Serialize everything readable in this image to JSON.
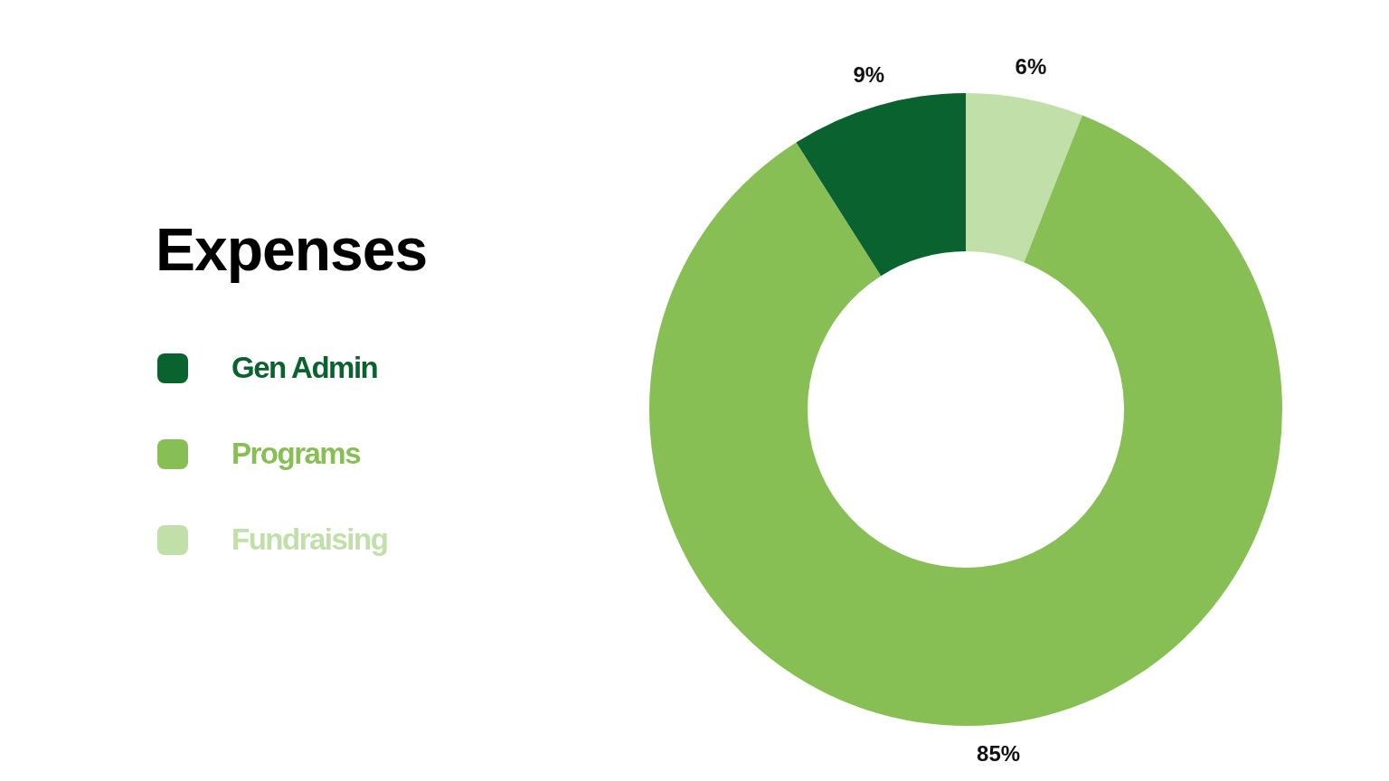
{
  "chart_data": {
    "type": "donut",
    "title": "Expenses",
    "categories": [
      "Gen Admin",
      "Programs",
      "Fundraising"
    ],
    "values": [
      9,
      85,
      6
    ],
    "value_labels": [
      "9%",
      "85%",
      "6%"
    ],
    "colors": [
      "#0a622e",
      "#88bf55",
      "#c1dfa8"
    ],
    "legend": "left"
  }
}
